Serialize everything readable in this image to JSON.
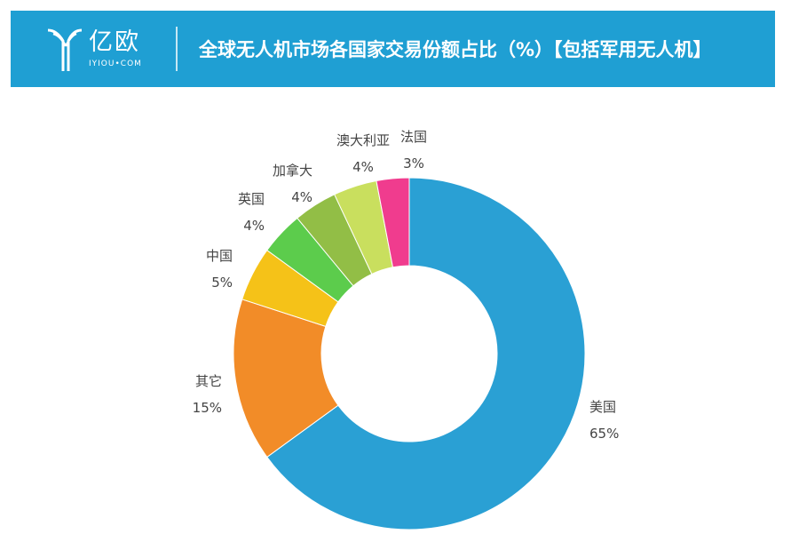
{
  "header": {
    "brand_cn": "亿欧",
    "brand_en": "IYIOU•COM",
    "title": "全球无人机市场各国家交易份额占比（%）【包括军用无人机】",
    "background": "#1f9fd3"
  },
  "chart_data": {
    "type": "pie",
    "style": "donut",
    "title": "全球无人机市场各国家交易份额占比（%）【包括军用无人机】",
    "unit": "%",
    "slices": [
      {
        "label": "美国",
        "value": 65,
        "display": "65%",
        "color": "#2aa0d4"
      },
      {
        "label": "其它",
        "value": 15,
        "display": "15%",
        "color": "#f28c28"
      },
      {
        "label": "中国",
        "value": 5,
        "display": "5%",
        "color": "#f5c218"
      },
      {
        "label": "英国",
        "value": 4,
        "display": "4%",
        "color": "#5ccc4c"
      },
      {
        "label": "加拿大",
        "value": 4,
        "display": "4%",
        "color": "#92be46"
      },
      {
        "label": "澳大利亚",
        "value": 4,
        "display": "4%",
        "color": "#c9df5e"
      },
      {
        "label": "法国",
        "value": 3,
        "display": "3%",
        "color": "#f03c8e"
      }
    ]
  }
}
